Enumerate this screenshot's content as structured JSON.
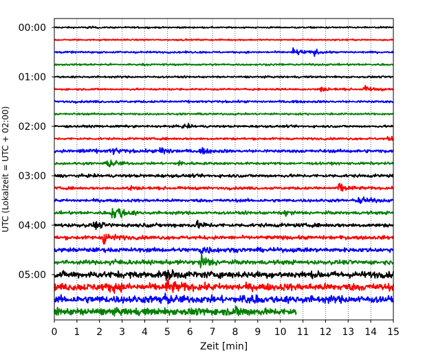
{
  "chart_data": {
    "type": "line",
    "xlabel": "Zeit  [min]",
    "ylabel": "UTC (Lokalzeit = UTC + 02:00)",
    "xlim": [
      0,
      15
    ],
    "x_ticks": [
      0,
      1,
      2,
      3,
      4,
      5,
      6,
      7,
      8,
      9,
      10,
      11,
      12,
      13,
      14,
      15
    ],
    "y_tick_labels": [
      "00:00",
      "01:00",
      "02:00",
      "03:00",
      "04:00",
      "05:00"
    ],
    "grid": "vertical dotted at each minute",
    "line_interval_min": 15,
    "trace_count": 24,
    "trace_colors": [
      "#000000",
      "#ff0000",
      "#0000ff",
      "#008000"
    ],
    "last_trace_end_min": 10.7,
    "traces": [
      {
        "start": "00:00",
        "color": "#000000",
        "noise": 0.12,
        "events": [
          {
            "t": 1.5,
            "amp": 0.15
          }
        ]
      },
      {
        "start": "00:15",
        "color": "#ff0000",
        "noise": 0.12,
        "events": []
      },
      {
        "start": "00:30",
        "color": "#0000ff",
        "noise": 0.15,
        "events": [
          {
            "t": 10.6,
            "amp": 0.6
          },
          {
            "t": 11.5,
            "amp": 0.3
          }
        ]
      },
      {
        "start": "00:45",
        "color": "#008000",
        "noise": 0.15,
        "events": []
      },
      {
        "start": "01:00",
        "color": "#000000",
        "noise": 0.15,
        "events": []
      },
      {
        "start": "01:15",
        "color": "#ff0000",
        "noise": 0.15,
        "events": [
          {
            "t": 11.8,
            "amp": 0.35
          },
          {
            "t": 13.7,
            "amp": 0.45
          }
        ]
      },
      {
        "start": "01:30",
        "color": "#0000ff",
        "noise": 0.18,
        "events": []
      },
      {
        "start": "01:45",
        "color": "#008000",
        "noise": 0.15,
        "events": []
      },
      {
        "start": "02:00",
        "color": "#000000",
        "noise": 0.18,
        "events": [
          {
            "t": 5.7,
            "amp": 0.3
          }
        ]
      },
      {
        "start": "02:15",
        "color": "#ff0000",
        "noise": 0.18,
        "events": [
          {
            "t": 14.8,
            "amp": 0.3
          }
        ]
      },
      {
        "start": "02:30",
        "color": "#0000ff",
        "noise": 0.25,
        "events": [
          {
            "t": 1.2,
            "amp": 0.35
          },
          {
            "t": 2.5,
            "amp": 0.55
          },
          {
            "t": 4.7,
            "amp": 0.7
          },
          {
            "t": 6.5,
            "amp": 0.3
          }
        ]
      },
      {
        "start": "02:45",
        "color": "#008000",
        "noise": 0.2,
        "events": [
          {
            "t": 2.4,
            "amp": 0.7
          },
          {
            "t": 5.5,
            "amp": 0.3
          }
        ]
      },
      {
        "start": "03:00",
        "color": "#000000",
        "noise": 0.25,
        "events": []
      },
      {
        "start": "03:15",
        "color": "#ff0000",
        "noise": 0.22,
        "events": [
          {
            "t": 3.3,
            "amp": 0.4
          },
          {
            "t": 12.6,
            "amp": 0.75
          }
        ]
      },
      {
        "start": "03:30",
        "color": "#0000ff",
        "noise": 0.25,
        "events": [
          {
            "t": 13.5,
            "amp": 0.6
          }
        ]
      },
      {
        "start": "03:45",
        "color": "#008000",
        "noise": 0.25,
        "events": [
          {
            "t": 2.6,
            "amp": 1.8
          },
          {
            "t": 10.2,
            "amp": 0.35
          }
        ]
      },
      {
        "start": "04:00",
        "color": "#000000",
        "noise": 0.3,
        "events": [
          {
            "t": 1.8,
            "amp": 0.4
          },
          {
            "t": 6.3,
            "amp": 0.5
          }
        ]
      },
      {
        "start": "04:15",
        "color": "#ff0000",
        "noise": 0.3,
        "events": [
          {
            "t": 2.2,
            "amp": 0.9
          }
        ]
      },
      {
        "start": "04:30",
        "color": "#0000ff",
        "noise": 0.35,
        "events": [
          {
            "t": 6.5,
            "amp": 0.7
          }
        ]
      },
      {
        "start": "04:45",
        "color": "#008000",
        "noise": 0.35,
        "events": [
          {
            "t": 6.5,
            "amp": 1.2
          },
          {
            "t": 2.5,
            "amp": 0.4
          }
        ]
      },
      {
        "start": "05:00",
        "color": "#000000",
        "noise": 0.55,
        "events": [
          {
            "t": 5.0,
            "amp": 0.6
          }
        ]
      },
      {
        "start": "05:15",
        "color": "#ff0000",
        "noise": 0.6,
        "events": [
          {
            "t": 5.0,
            "amp": 0.9
          },
          {
            "t": 2.5,
            "amp": 0.5
          }
        ]
      },
      {
        "start": "05:30",
        "color": "#0000ff",
        "noise": 0.6,
        "events": [
          {
            "t": 4.7,
            "amp": 0.7
          },
          {
            "t": 8.4,
            "amp": 0.6
          }
        ]
      },
      {
        "start": "05:45",
        "color": "#008000",
        "noise": 0.55,
        "events": [
          {
            "t": 8.0,
            "amp": 0.6
          }
        ]
      }
    ]
  }
}
